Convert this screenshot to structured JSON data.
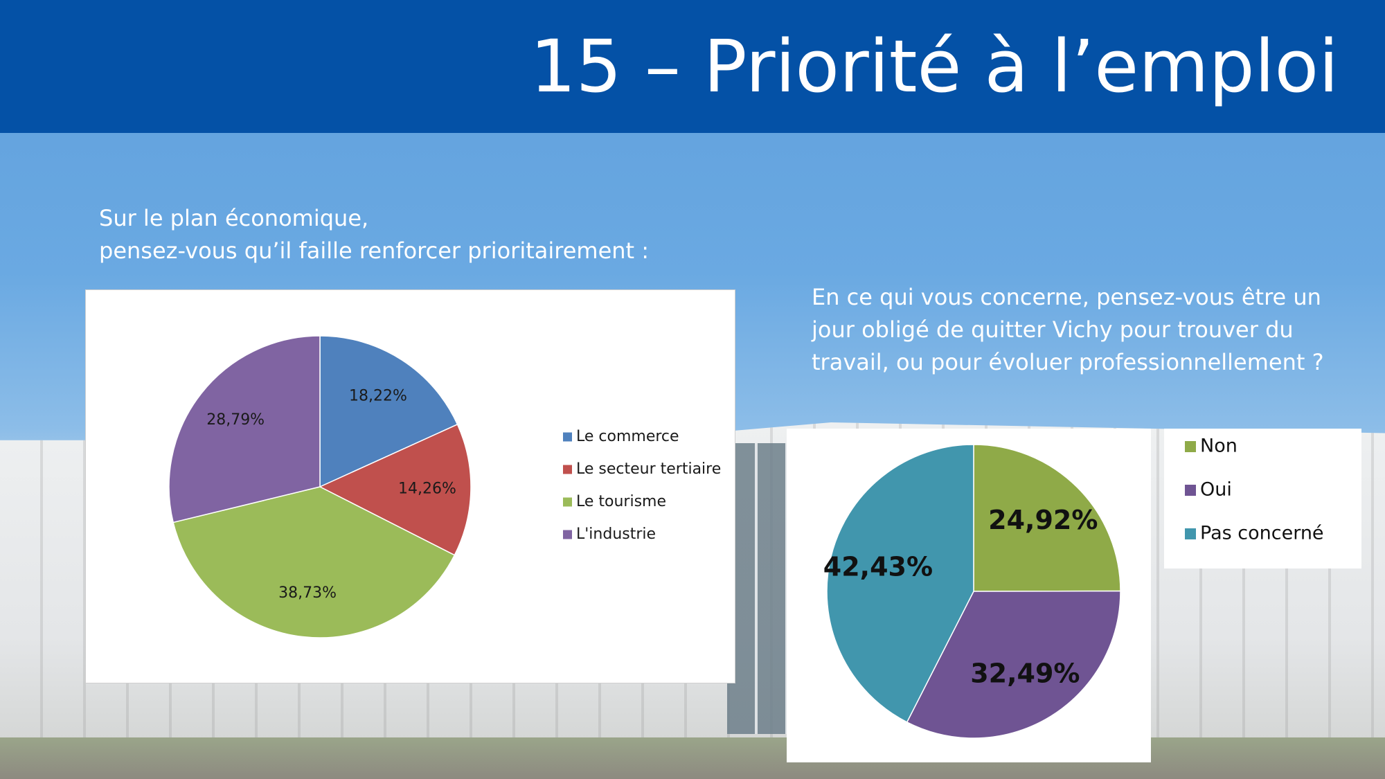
{
  "header": {
    "title": "15 – Priorité à l’emploi"
  },
  "question1": {
    "lines": [
      "Sur le plan économique,",
      "pensez-vous qu’il faille renforcer prioritairement :"
    ]
  },
  "question2": {
    "lines": [
      "En ce qui vous concerne, pensez-vous être un",
      "jour obligé de quitter Vichy pour trouver du",
      "travail, ou pour évoluer professionnellement ?"
    ]
  },
  "chart_data": [
    {
      "type": "pie",
      "title": "",
      "categories": [
        "Le commerce",
        "Le secteur tertiaire",
        "Le tourisme",
        "L'industrie"
      ],
      "values": [
        18.22,
        14.26,
        38.73,
        28.79
      ],
      "labels": [
        "18,22%",
        "14,26%",
        "38,73%",
        "28,79%"
      ],
      "colors": [
        "#4f81bd",
        "#c0504d",
        "#9bbb59",
        "#8064a2"
      ],
      "legend": "right"
    },
    {
      "type": "pie",
      "title": "",
      "categories": [
        "Non",
        "Oui",
        "Pas concerné"
      ],
      "values": [
        24.92,
        32.49,
        42.43
      ],
      "labels": [
        "24,92%",
        "32,49%",
        "42,43%"
      ],
      "colors": [
        "#8faa48",
        "#6f5493",
        "#4196ad"
      ],
      "legend": "right"
    }
  ]
}
